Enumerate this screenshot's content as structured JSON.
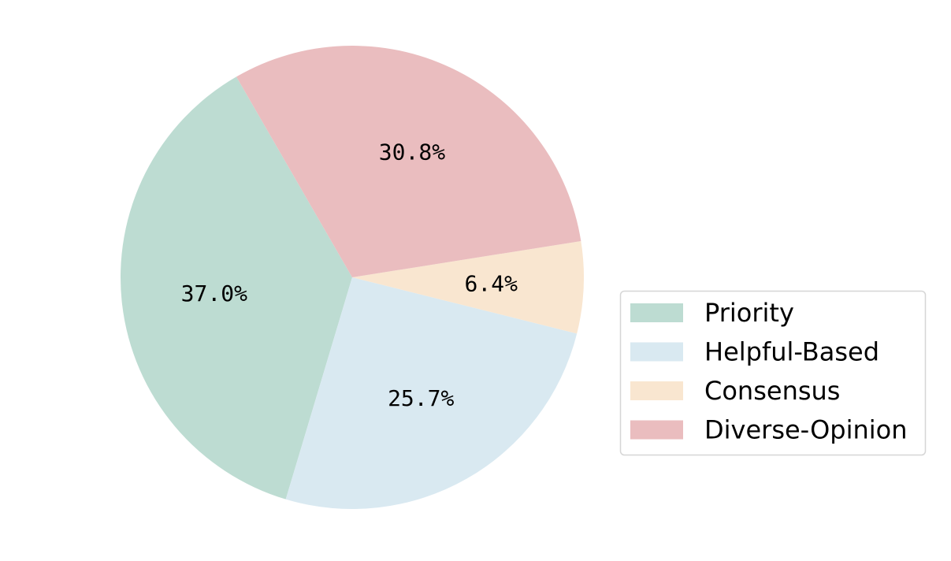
{
  "chart_data": {
    "type": "pie",
    "categories": [
      "Priority",
      "Helpful-Based",
      "Consensus",
      "Diverse-Opinion"
    ],
    "values": [
      37.0,
      25.7,
      6.4,
      30.8
    ],
    "labels": [
      "37.0%",
      "25.7%",
      "6.4%",
      "30.8%"
    ],
    "colors": [
      "#bddcd2",
      "#d9e9f1",
      "#f9e6d0",
      "#eabdbf"
    ],
    "start_angle_deg": 120,
    "direction": "counterclockwise",
    "legend_position": "center-right"
  }
}
